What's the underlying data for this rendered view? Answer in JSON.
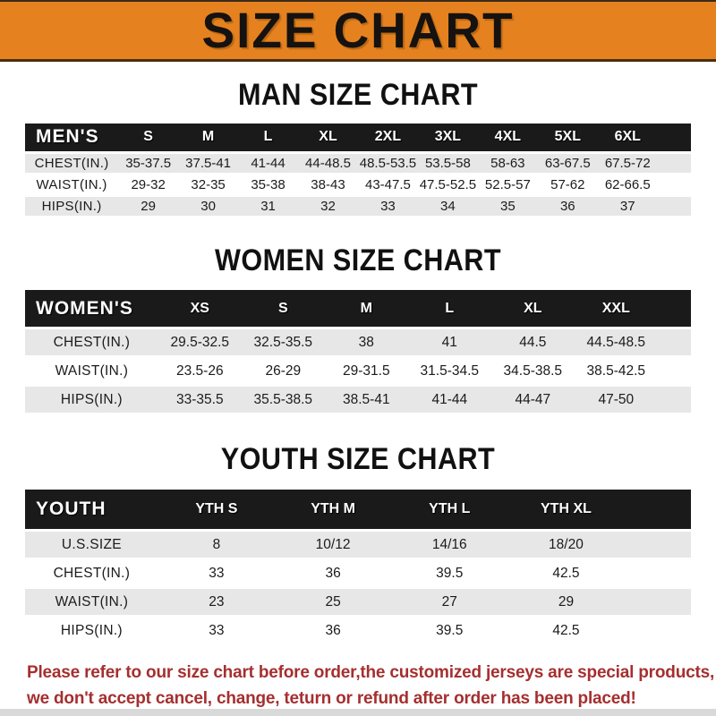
{
  "page_title": "SIZE CHART",
  "theme": {
    "header_bg": "#E5821F",
    "band_bg": "#1A1A1A",
    "row_alt_bg": "#E7E7E7",
    "note_color": "#A52F2F"
  },
  "tables": {
    "men": {
      "section_title": "MAN SIZE CHART",
      "header_label": "MEN'S",
      "columns": [
        "S",
        "M",
        "L",
        "XL",
        "2XL",
        "3XL",
        "4XL",
        "5XL",
        "6XL"
      ],
      "rows": [
        {
          "label": "CHEST(IN.)",
          "values": [
            "35-37.5",
            "37.5-41",
            "41-44",
            "44-48.5",
            "48.5-53.5",
            "53.5-58",
            "58-63",
            "63-67.5",
            "67.5-72"
          ]
        },
        {
          "label": "WAIST(IN.)",
          "values": [
            "29-32",
            "32-35",
            "35-38",
            "38-43",
            "43-47.5",
            "47.5-52.5",
            "52.5-57",
            "57-62",
            "62-66.5"
          ]
        },
        {
          "label": "HIPS(IN.)",
          "values": [
            "29",
            "30",
            "31",
            "32",
            "33",
            "34",
            "35",
            "36",
            "37"
          ]
        }
      ]
    },
    "women": {
      "section_title": "WOMEN SIZE CHART",
      "header_label": "WOMEN'S",
      "columns": [
        "XS",
        "S",
        "M",
        "L",
        "XL",
        "XXL"
      ],
      "rows": [
        {
          "label": "CHEST(IN.)",
          "values": [
            "29.5-32.5",
            "32.5-35.5",
            "38",
            "41",
            "44.5",
            "44.5-48.5"
          ]
        },
        {
          "label": "WAIST(IN.)",
          "values": [
            "23.5-26",
            "26-29",
            "29-31.5",
            "31.5-34.5",
            "34.5-38.5",
            "38.5-42.5"
          ]
        },
        {
          "label": "HIPS(IN.)",
          "values": [
            "33-35.5",
            "35.5-38.5",
            "38.5-41",
            "41-44",
            "44-47",
            "47-50"
          ]
        }
      ]
    },
    "youth": {
      "section_title": "YOUTH SIZE CHART",
      "header_label": "YOUTH",
      "columns": [
        "YTH S",
        "YTH M",
        "YTH L",
        "YTH XL"
      ],
      "rows": [
        {
          "label": "U.S.SIZE",
          "values": [
            "8",
            "10/12",
            "14/16",
            "18/20"
          ]
        },
        {
          "label": "CHEST(IN.)",
          "values": [
            "33",
            "36",
            "39.5",
            "42.5"
          ]
        },
        {
          "label": "WAIST(IN.)",
          "values": [
            "23",
            "25",
            "27",
            "29"
          ]
        },
        {
          "label": "HIPS(IN.)",
          "values": [
            "33",
            "36",
            "39.5",
            "42.5"
          ]
        }
      ]
    }
  },
  "footer": {
    "line1": "Please refer to our size chart before order,the customized jerseys are special products,",
    "line2": "we don't accept cancel, change, teturn or refund after order has been placed!"
  }
}
